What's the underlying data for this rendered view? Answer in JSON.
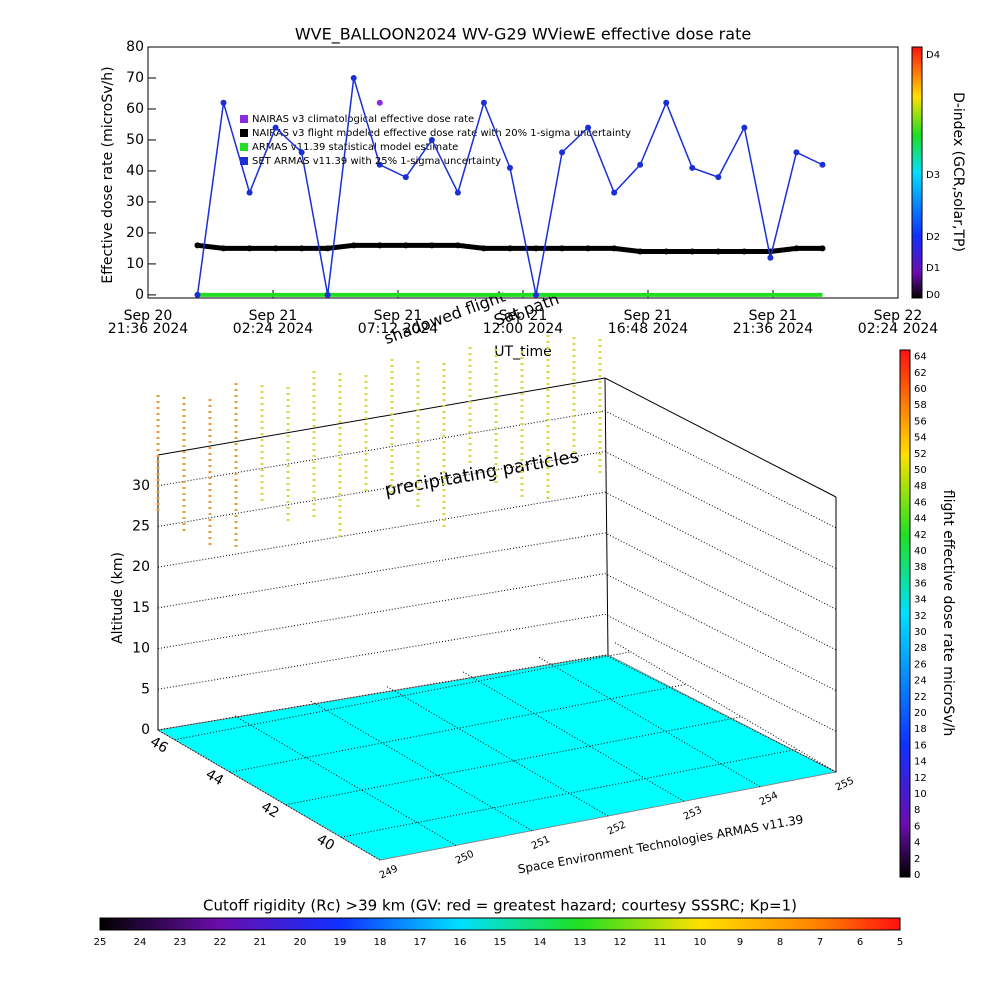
{
  "chart_data": [
    {
      "type": "line",
      "title": "WVE_BALLOON2024 WV-G29 WViewE effective dose rate",
      "xlabel": "UT_time",
      "ylabel": "Effective dose rate (microSv/h)",
      "xlim": [
        "2024-09-20T21:36",
        "2024-09-22T02:24"
      ],
      "xticks": [
        {
          "value": "2024-09-20T21:36",
          "label": [
            "Sep 20",
            "21:36 2024"
          ]
        },
        {
          "value": "2024-09-21T02:24",
          "label": [
            "Sep 21",
            "02:24 2024"
          ]
        },
        {
          "value": "2024-09-21T07:12",
          "label": [
            "Sep 21",
            "07:12 2024"
          ]
        },
        {
          "value": "2024-09-21T12:00",
          "label": [
            "Sep 21",
            "12:00 2024"
          ]
        },
        {
          "value": "2024-09-21T16:48",
          "label": [
            "Sep 21",
            "16:48 2024"
          ]
        },
        {
          "value": "2024-09-21T21:36",
          "label": [
            "Sep 21",
            "21:36 2024"
          ]
        },
        {
          "value": "2024-09-22T02:24",
          "label": [
            "Sep 22",
            "02:24 2024"
          ]
        }
      ],
      "ylim": [
        -1,
        80
      ],
      "yticks": [
        0,
        10,
        20,
        30,
        40,
        50,
        60,
        70,
        80
      ],
      "x": [
        "2024-09-20T23:30",
        "2024-09-21T00:30",
        "2024-09-21T01:30",
        "2024-09-21T02:30",
        "2024-09-21T03:30",
        "2024-09-21T04:30",
        "2024-09-21T05:30",
        "2024-09-21T06:30",
        "2024-09-21T07:30",
        "2024-09-21T08:30",
        "2024-09-21T09:30",
        "2024-09-21T10:30",
        "2024-09-21T11:30",
        "2024-09-21T12:30",
        "2024-09-21T13:30",
        "2024-09-21T14:30",
        "2024-09-21T15:30",
        "2024-09-21T16:30",
        "2024-09-21T17:30",
        "2024-09-21T18:30",
        "2024-09-21T19:30",
        "2024-09-21T20:30",
        "2024-09-21T21:30",
        "2024-09-21T22:30",
        "2024-09-21T23:30"
      ],
      "series": [
        {
          "name": "NAIRAS v3 climatological effective dose rate",
          "color": "#8a2be2",
          "values": [
            null,
            null,
            null,
            null,
            null,
            null,
            null,
            62,
            null,
            null,
            null,
            null,
            null,
            null,
            null,
            null,
            null,
            null,
            null,
            null,
            null,
            null,
            null,
            null,
            null
          ]
        },
        {
          "name": "NAIRAS v3 flight modeled effective dose rate with 20% 1-sigma uncertainty",
          "color": "#000000",
          "values": [
            16,
            15,
            15,
            15,
            15,
            15,
            16,
            16,
            16,
            16,
            16,
            15,
            15,
            15,
            15,
            15,
            15,
            14,
            14,
            14,
            14,
            14,
            14,
            15,
            15
          ]
        },
        {
          "name": "ARMAS v11.39 statistical model estimate",
          "color": "#22dd22",
          "values": [
            0,
            0,
            0,
            0,
            0,
            0,
            0,
            0,
            0,
            0,
            0,
            0,
            0,
            0,
            0,
            0,
            0,
            0,
            0,
            0,
            0,
            0,
            0,
            0,
            0
          ]
        },
        {
          "name": "SET ARMAS v11.39 with 25% 1-sigma uncertainty",
          "color": "#1a2fd6",
          "values": [
            0,
            62,
            33,
            54,
            46,
            0,
            70,
            42,
            38,
            50,
            33,
            62,
            41,
            0,
            46,
            54,
            33,
            42,
            62,
            41,
            38,
            54,
            12,
            46,
            42
          ]
        }
      ],
      "colorbar": {
        "label": "D-index (GCR,solar,TP)",
        "ticks": [
          "D0",
          "D1",
          "D2",
          "D3",
          "D4"
        ]
      }
    },
    {
      "type": "surface3d",
      "zlabel": "Altitude (km)",
      "zticks": [
        0,
        5,
        10,
        15,
        20,
        25,
        30
      ],
      "lat_ticks": [
        46,
        44,
        42,
        40
      ],
      "lon_ticks": [
        249,
        250,
        251,
        252,
        253,
        254,
        255
      ],
      "annotations": [
        "precipitating particles",
        "Sat path",
        "shadowed flight",
        "Space Environment Technologies ARMAS v11.39"
      ],
      "colorbar": {
        "label": "flight effective dose rate microSv/h",
        "ticks": [
          0,
          2,
          4,
          6,
          8,
          10,
          12,
          14,
          16,
          18,
          20,
          22,
          24,
          26,
          28,
          30,
          32,
          34,
          36,
          38,
          40,
          42,
          44,
          46,
          48,
          50,
          52,
          54,
          56,
          58,
          60,
          62,
          64
        ]
      },
      "rc_colorbar": {
        "label": "Cutoff rigidity (Rc) >39 km (GV: red = greatest hazard; courtesy SSSRC; Kp=1)",
        "ticks": [
          25,
          24,
          23,
          22,
          21,
          20,
          19,
          18,
          17,
          16,
          15,
          14,
          13,
          12,
          11,
          10,
          9,
          8,
          7,
          6,
          5
        ]
      }
    }
  ]
}
